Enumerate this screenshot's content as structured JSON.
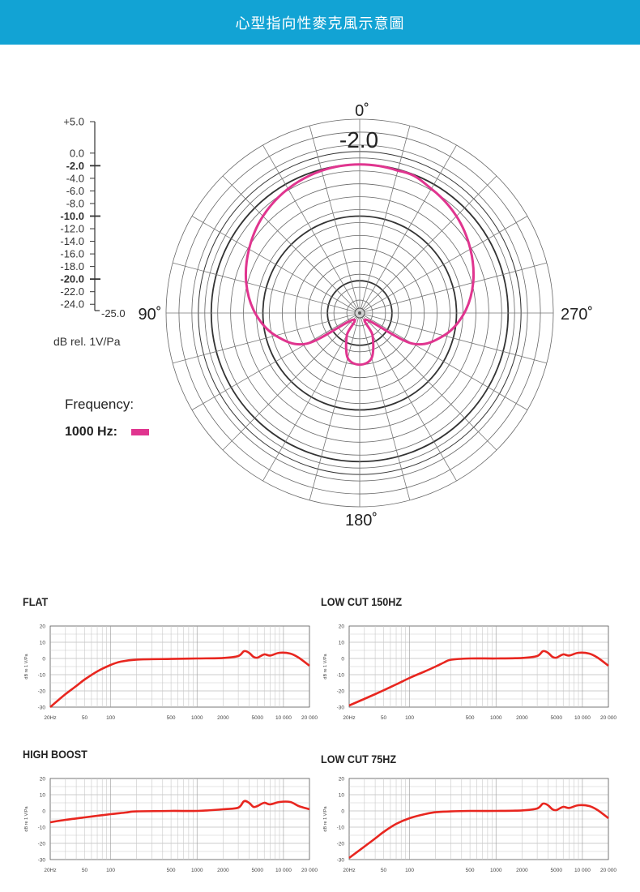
{
  "header": {
    "title": "心型指向性麥克風示意圖"
  },
  "chart_data": [
    {
      "type": "polar",
      "angle_labels": {
        "top": "0˚",
        "left": "90˚",
        "right": "270˚",
        "bottom": "180˚"
      },
      "center_value_label": "-2.0",
      "scale": {
        "labels": [
          "+5.0",
          "0.0",
          "-2.0",
          "-4.0",
          "-6.0",
          "-8.0",
          "-10.0",
          "-12.0",
          "-14.0",
          "-16.0",
          "-18.0",
          "-20.0",
          "-22.0",
          "-24.0",
          "-25.0"
        ],
        "values": [
          5,
          0,
          -2,
          -4,
          -6,
          -8,
          -10,
          -12,
          -14,
          -16,
          -18,
          -20,
          -22,
          -24,
          -25
        ],
        "bold": [
          "-2.0",
          "-10.0",
          "-20.0"
        ],
        "unit_label": "dB rel. 1V/Pa"
      },
      "legend": {
        "title": "Frequency:",
        "label": "1000 Hz:",
        "color": "#e0358f"
      },
      "series": [
        {
          "name": "1000 Hz",
          "color": "#e0358f",
          "angles_deg": [
            0,
            15,
            30,
            45,
            60,
            75,
            90,
            105,
            120,
            135,
            150,
            165,
            180,
            195,
            210,
            225,
            240,
            255,
            270,
            285,
            300,
            315,
            330,
            345,
            360
          ],
          "db": [
            -2.0,
            -2.2,
            -2.8,
            -3.8,
            -5.2,
            -6.8,
            -8.8,
            -11.5,
            -15.5,
            -23.5,
            -21.0,
            -17.8,
            -17.0,
            -17.8,
            -21.0,
            -23.5,
            -15.5,
            -11.5,
            -8.8,
            -6.8,
            -5.2,
            -3.8,
            -2.8,
            -2.2,
            -2.0
          ]
        }
      ]
    },
    {
      "type": "line",
      "title": "FLAT",
      "x_scale": "log",
      "x_tick_labels": [
        "20Hz",
        "50",
        "100",
        "500",
        "1000",
        "2000",
        "5000",
        "10 000",
        "20 000"
      ],
      "x_tick_values": [
        20,
        50,
        100,
        500,
        1000,
        2000,
        5000,
        10000,
        20000
      ],
      "y_tick_labels": [
        "20",
        "10",
        "0",
        "-10",
        "-20",
        "-30"
      ],
      "y_tick_values": [
        20,
        10,
        0,
        -10,
        -20,
        -30
      ],
      "ylabel": "dB re 1 V/Pa",
      "ylim": [
        -30,
        20
      ],
      "xlim": [
        20,
        20000
      ],
      "series": [
        {
          "color": "#e8261f",
          "x": [
            20,
            30,
            40,
            50,
            70,
            100,
            130,
            200,
            500,
            1000,
            2000,
            3000,
            3500,
            4000,
            4500,
            5000,
            6000,
            7000,
            9000,
            12000,
            15000,
            20000
          ],
          "y": [
            -30,
            -22,
            -17,
            -13,
            -8,
            -4,
            -2,
            -0.7,
            -0.3,
            0,
            0.3,
            1.5,
            4.5,
            3.5,
            1,
            0.5,
            2.5,
            1.8,
            3.5,
            3,
            0.5,
            -4.5
          ]
        }
      ]
    },
    {
      "type": "line",
      "title": "LOW CUT 150HZ",
      "x_scale": "log",
      "x_tick_labels": [
        "20Hz",
        "50",
        "100",
        "500",
        "1000",
        "2000",
        "5000",
        "10 000",
        "20 000"
      ],
      "x_tick_values": [
        20,
        50,
        100,
        500,
        1000,
        2000,
        5000,
        10000,
        20000
      ],
      "y_tick_labels": [
        "20",
        "10",
        "0",
        "-10",
        "-20",
        "-30"
      ],
      "y_tick_values": [
        20,
        10,
        0,
        -10,
        -20,
        -30
      ],
      "ylabel": "dB re 1 V/Pa",
      "ylim": [
        -30,
        20
      ],
      "xlim": [
        20,
        20000
      ],
      "series": [
        {
          "color": "#e8261f",
          "x": [
            20,
            40,
            70,
            100,
            150,
            200,
            250,
            300,
            500,
            1000,
            2000,
            3000,
            3500,
            4000,
            4500,
            5000,
            6000,
            7000,
            9000,
            12000,
            15000,
            20000
          ],
          "y": [
            -29,
            -22,
            -16,
            -12,
            -8,
            -5,
            -2.5,
            -0.8,
            0,
            0,
            0.3,
            1.5,
            4.5,
            3.5,
            1,
            0.5,
            2.5,
            1.8,
            3.5,
            3,
            0.5,
            -4.5
          ]
        }
      ]
    },
    {
      "type": "line",
      "title": "HIGH BOOST",
      "x_scale": "log",
      "x_tick_labels": [
        "20Hz",
        "50",
        "100",
        "500",
        "1000",
        "2000",
        "5000",
        "10 000",
        "20 000"
      ],
      "x_tick_values": [
        20,
        50,
        100,
        500,
        1000,
        2000,
        5000,
        10000,
        20000
      ],
      "y_tick_labels": [
        "20",
        "10",
        "0",
        "-10",
        "-20",
        "-30"
      ],
      "y_tick_values": [
        20,
        10,
        0,
        -10,
        -20,
        -30
      ],
      "ylabel": "dB re 1 V/Pa",
      "ylim": [
        -30,
        20
      ],
      "xlim": [
        20,
        20000
      ],
      "series": [
        {
          "color": "#e8261f",
          "x": [
            20,
            30,
            50,
            70,
            100,
            150,
            200,
            500,
            1000,
            2000,
            3000,
            3500,
            4000,
            4500,
            5000,
            6000,
            7000,
            9000,
            12000,
            15000,
            20000
          ],
          "y": [
            -7,
            -5.5,
            -4,
            -3,
            -2,
            -1,
            -0.3,
            0,
            0,
            1,
            2,
            6,
            5,
            2.5,
            3,
            5,
            4,
            5.5,
            5.5,
            3,
            1
          ]
        }
      ]
    },
    {
      "type": "line",
      "title": "LOW CUT 75HZ",
      "x_scale": "log",
      "x_tick_labels": [
        "20Hz",
        "50",
        "100",
        "500",
        "1000",
        "2000",
        "5000",
        "10 000",
        "20 000"
      ],
      "x_tick_values": [
        20,
        50,
        100,
        500,
        1000,
        2000,
        5000,
        10000,
        20000
      ],
      "y_tick_labels": [
        "20",
        "10",
        "0",
        "-10",
        "-20",
        "-30"
      ],
      "y_tick_values": [
        20,
        10,
        0,
        -10,
        -20,
        -30
      ],
      "ylabel": "dB re 1 V/Pa",
      "ylim": [
        -30,
        20
      ],
      "xlim": [
        20,
        20000
      ],
      "series": [
        {
          "color": "#e8261f",
          "x": [
            20,
            30,
            40,
            50,
            70,
            100,
            150,
            200,
            300,
            500,
            1000,
            2000,
            3000,
            3500,
            4000,
            4500,
            5000,
            6000,
            7000,
            9000,
            12000,
            15000,
            20000
          ],
          "y": [
            -29,
            -22,
            -17,
            -13,
            -8,
            -4.5,
            -2,
            -0.8,
            -0.3,
            0,
            0,
            0.3,
            1.5,
            4.5,
            3.5,
            1,
            0.5,
            2.5,
            1.8,
            3.5,
            3,
            0.5,
            -4.5
          ]
        }
      ]
    }
  ]
}
